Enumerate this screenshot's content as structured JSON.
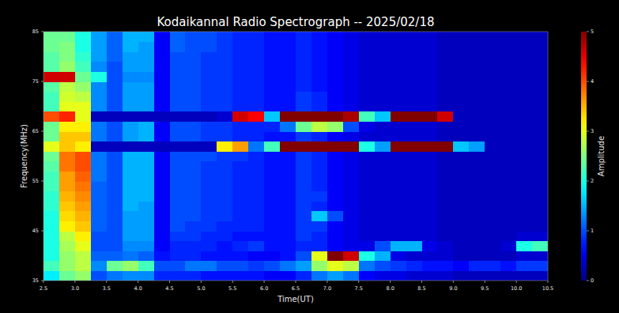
{
  "chart_data": {
    "type": "heatmap",
    "title": "Kodaikannal Radio Spectrograph -- 2025/02/18",
    "x_label": "Time(UT)",
    "y_label": "Frequency(MHz)",
    "xlim": [
      2.5,
      10.5
    ],
    "ylim": [
      35,
      85
    ],
    "xticks": [
      2.5,
      {
        "value": 3,
        "label": "3.0"
      },
      3.5,
      {
        "value": 4,
        "label": "4.0"
      },
      4.5,
      {
        "value": 5,
        "label": "5.0"
      },
      5.5,
      {
        "value": 6,
        "label": "6.0"
      },
      6.5,
      {
        "value": 7,
        "label": "7.0"
      },
      7.5,
      {
        "value": 8,
        "label": "8.0"
      },
      8.5,
      {
        "value": 9,
        "label": "9.0"
      },
      9.5,
      {
        "value": 10,
        "label": "10.0"
      },
      10.5
    ],
    "yticks": [
      35,
      45,
      55,
      65,
      75,
      85
    ],
    "x_edges": [
      2.5,
      2.75,
      3,
      3.25,
      3.5,
      3.75,
      4,
      4.25,
      4.5,
      4.75,
      5,
      5.25,
      5.5,
      5.75,
      6,
      6.25,
      6.5,
      6.75,
      7,
      7.25,
      7.5,
      7.75,
      8,
      8.25,
      8.5,
      8.75,
      9,
      9.25,
      9.5,
      9.75,
      10,
      10.25,
      10.5
    ],
    "y_edges": [
      35,
      37,
      39,
      41,
      43,
      45,
      47,
      49,
      51,
      53,
      55,
      57,
      59,
      61,
      63,
      65,
      67,
      69,
      71,
      73,
      75,
      77,
      79,
      81,
      83,
      85
    ],
    "cells": [
      [
        1.8,
        2.4,
        2.6,
        1.0,
        1.2,
        1.3,
        1.3,
        0.8,
        0.8,
        0.8,
        0.7,
        0.7,
        0.7,
        0.7,
        0.6,
        0.6,
        0.8,
        1.2,
        1.4,
        1.2,
        0.6,
        0.5,
        0.5,
        0.4,
        0.4,
        0.4,
        0.3,
        0.3,
        0.3,
        0.3,
        0.3,
        0.3
      ],
      [
        2.2,
        2.6,
        2.8,
        1.3,
        2.4,
        2.6,
        2.2,
        1.0,
        1.0,
        1.2,
        1.2,
        1.0,
        1.0,
        0.9,
        1.0,
        1.2,
        1.4,
        2.6,
        3.0,
        2.8,
        1.2,
        1.0,
        0.9,
        0.8,
        0.7,
        0.7,
        0.6,
        0.8,
        0.8,
        0.7,
        0.9,
        0.9
      ],
      [
        2.0,
        2.6,
        2.8,
        1.1,
        1.1,
        1.2,
        1.1,
        0.7,
        0.8,
        0.8,
        0.7,
        0.7,
        0.7,
        0.6,
        0.6,
        0.7,
        1.0,
        3.0,
        5,
        4.6,
        2.0,
        1.5,
        0.5,
        0.4,
        0.4,
        0.4,
        0.3,
        0.3,
        0.3,
        0.3,
        0.4,
        0.4
      ],
      [
        2.0,
        2.7,
        3.0,
        1.0,
        1.0,
        1.3,
        1.3,
        0.6,
        0.8,
        0.8,
        0.8,
        0.7,
        0.8,
        0.9,
        0.7,
        0.7,
        0.8,
        0.8,
        0.6,
        0.5,
        0.5,
        1.0,
        1.5,
        1.5,
        0.5,
        0.4,
        0.3,
        0.3,
        0.3,
        0.4,
        2.0,
        2.2
      ],
      [
        2.0,
        2.8,
        3.2,
        1.0,
        1.0,
        1.4,
        1.4,
        0.6,
        0.9,
        0.9,
        0.8,
        0.8,
        0.7,
        0.7,
        0.7,
        0.7,
        0.9,
        0.8,
        0.6,
        0.5,
        0.4,
        0.4,
        0.4,
        0.4,
        0.4,
        0.3,
        0.3,
        0.3,
        0.3,
        0.3,
        0.4,
        0.4
      ],
      [
        2.0,
        3.2,
        3.4,
        1.1,
        1.0,
        1.4,
        1.4,
        0.6,
        1.0,
        0.9,
        0.9,
        0.8,
        0.8,
        0.8,
        0.7,
        0.7,
        0.9,
        0.9,
        0.6,
        0.5,
        0.4,
        0.4,
        0.4,
        0.4,
        0.4,
        0.3,
        0.3,
        0.3,
        0.3,
        0.3,
        0.3,
        0.3
      ],
      [
        2.0,
        3.3,
        3.5,
        1.1,
        1.0,
        1.4,
        1.4,
        0.6,
        1.0,
        1.0,
        0.9,
        0.9,
        0.8,
        0.8,
        0.7,
        0.7,
        0.9,
        1.6,
        1.0,
        0.5,
        0.4,
        0.4,
        0.4,
        0.4,
        0.4,
        0.3,
        0.3,
        0.3,
        0.3,
        0.3,
        0.3,
        0.3
      ],
      [
        2.1,
        3.4,
        3.6,
        1.1,
        1.0,
        1.5,
        1.4,
        0.6,
        1.0,
        1.0,
        0.9,
        0.9,
        0.8,
        0.8,
        0.7,
        0.7,
        0.9,
        0.8,
        0.6,
        0.5,
        0.4,
        0.4,
        0.4,
        0.4,
        0.4,
        0.3,
        0.3,
        0.3,
        0.3,
        0.3,
        0.3,
        0.3
      ],
      [
        2.1,
        3.5,
        3.7,
        1.1,
        1.0,
        1.5,
        1.5,
        0.6,
        1.0,
        1.0,
        0.9,
        0.9,
        0.8,
        0.8,
        0.7,
        0.7,
        0.9,
        0.9,
        0.6,
        0.5,
        0.4,
        0.4,
        0.4,
        0.4,
        0.4,
        0.3,
        0.3,
        0.3,
        0.3,
        0.3,
        0.3,
        0.3
      ],
      [
        2.2,
        3.6,
        3.8,
        1.1,
        1.0,
        1.5,
        1.5,
        0.6,
        1.0,
        1.0,
        0.9,
        0.9,
        0.8,
        0.8,
        0.7,
        0.7,
        0.9,
        0.8,
        0.6,
        0.5,
        0.4,
        0.4,
        0.4,
        0.4,
        0.4,
        0.3,
        0.3,
        0.3,
        0.3,
        0.3,
        0.3,
        0.3
      ],
      [
        2.2,
        3.6,
        3.9,
        1.2,
        1.0,
        1.5,
        1.5,
        0.6,
        1.0,
        1.0,
        0.9,
        0.9,
        0.8,
        0.8,
        0.7,
        0.7,
        0.9,
        0.8,
        0.6,
        0.5,
        0.4,
        0.4,
        0.4,
        0.4,
        0.4,
        0.3,
        0.3,
        0.3,
        0.3,
        0.3,
        0.3,
        0.3
      ],
      [
        2.3,
        3.8,
        4.0,
        1.2,
        1.0,
        1.5,
        1.5,
        0.6,
        1.0,
        1.0,
        0.9,
        0.9,
        0.8,
        0.8,
        0.7,
        0.7,
        0.9,
        0.8,
        0.6,
        0.5,
        0.4,
        0.4,
        0.4,
        0.4,
        0.4,
        0.3,
        0.3,
        0.3,
        0.3,
        0.3,
        0.3,
        0.3
      ],
      [
        2.4,
        3.8,
        4.0,
        1.2,
        1.0,
        1.5,
        1.5,
        0.6,
        1.0,
        1.0,
        1.0,
        0.9,
        0.9,
        0.8,
        0.7,
        0.7,
        0.9,
        0.8,
        0.6,
        0.5,
        0.4,
        0.4,
        0.4,
        0.4,
        0.4,
        0.3,
        0.3,
        0.3,
        0.3,
        0.3,
        0.3,
        0.3
      ],
      [
        3.0,
        3.4,
        3.2,
        0.3,
        0.3,
        0.3,
        0.3,
        0.3,
        0.3,
        0.3,
        0.3,
        3.2,
        3.6,
        1.2,
        2.2,
        5,
        5,
        5,
        5,
        5,
        2.0,
        1.4,
        5,
        5,
        5,
        5,
        1.6,
        1.4,
        0.3,
        0.3,
        0.3,
        0.3
      ],
      [
        2.4,
        3.4,
        3.4,
        1.2,
        1.0,
        1.4,
        1.5,
        0.6,
        1.0,
        1.0,
        0.9,
        0.9,
        0.8,
        0.8,
        0.7,
        0.7,
        0.9,
        0.8,
        0.6,
        0.5,
        0.4,
        0.4,
        0.4,
        0.4,
        0.4,
        0.3,
        0.3,
        0.3,
        0.3,
        0.3,
        0.3,
        0.3
      ],
      [
        2.4,
        3.2,
        3.2,
        1.2,
        1.0,
        1.4,
        1.5,
        0.6,
        1.0,
        1.0,
        0.9,
        0.9,
        0.8,
        0.8,
        0.8,
        1.2,
        2.4,
        2.8,
        2.6,
        1.0,
        0.5,
        0.4,
        0.4,
        0.4,
        0.4,
        0.3,
        0.3,
        0.3,
        0.3,
        0.3,
        0.3,
        0.3
      ],
      [
        4.0,
        4.2,
        3.0,
        0.3,
        0.3,
        0.3,
        0.3,
        0.3,
        0.3,
        0.3,
        0.3,
        0.4,
        4.6,
        4.4,
        1.6,
        5,
        5,
        5,
        5,
        4.8,
        2.2,
        1.6,
        5,
        5,
        5,
        4.6,
        0.3,
        0.3,
        0.3,
        0.3,
        0.3,
        0.3
      ],
      [
        2.2,
        3.0,
        3.0,
        1.3,
        1.0,
        1.4,
        1.4,
        0.6,
        1.0,
        1.0,
        0.9,
        0.9,
        0.8,
        0.8,
        0.7,
        0.7,
        0.9,
        0.8,
        0.6,
        0.5,
        0.4,
        0.4,
        0.4,
        0.4,
        0.4,
        0.3,
        0.3,
        0.3,
        0.3,
        0.3,
        0.3,
        0.3
      ],
      [
        2.2,
        2.9,
        2.8,
        1.3,
        1.0,
        1.4,
        1.4,
        0.6,
        1.0,
        1.0,
        0.9,
        0.9,
        0.8,
        0.8,
        0.7,
        0.7,
        0.9,
        0.8,
        0.6,
        0.5,
        0.4,
        0.4,
        0.4,
        0.4,
        0.4,
        0.3,
        0.3,
        0.3,
        0.3,
        0.3,
        0.3,
        0.3
      ],
      [
        2.3,
        2.8,
        2.6,
        1.3,
        1.0,
        1.4,
        1.4,
        0.6,
        1.0,
        1.0,
        0.9,
        0.9,
        0.8,
        0.8,
        0.7,
        0.7,
        0.8,
        0.7,
        0.6,
        0.5,
        0.4,
        0.4,
        0.4,
        0.4,
        0.4,
        0.3,
        0.3,
        0.3,
        0.3,
        0.3,
        0.3,
        0.3
      ],
      [
        4.6,
        4.6,
        2.4,
        2.0,
        1.0,
        1.3,
        1.3,
        0.6,
        1.0,
        1.0,
        0.9,
        0.9,
        0.8,
        0.8,
        0.7,
        0.7,
        0.8,
        0.7,
        0.6,
        0.5,
        0.4,
        0.4,
        0.4,
        0.4,
        0.4,
        0.3,
        0.3,
        0.3,
        0.3,
        0.3,
        0.3,
        0.3
      ],
      [
        2.3,
        2.6,
        2.2,
        1.3,
        1.0,
        1.4,
        1.4,
        0.6,
        1.0,
        1.0,
        0.9,
        0.9,
        0.8,
        0.8,
        0.7,
        0.7,
        0.8,
        0.7,
        0.6,
        0.5,
        0.4,
        0.4,
        0.4,
        0.4,
        0.4,
        0.3,
        0.3,
        0.3,
        0.3,
        0.3,
        0.3,
        0.3
      ],
      [
        2.3,
        2.5,
        2.1,
        1.4,
        1.1,
        1.4,
        1.4,
        0.6,
        1.0,
        1.0,
        0.9,
        0.9,
        0.8,
        0.8,
        0.7,
        0.7,
        0.8,
        0.7,
        0.6,
        0.5,
        0.4,
        0.4,
        0.4,
        0.4,
        0.4,
        0.3,
        0.3,
        0.3,
        0.3,
        0.3,
        0.3,
        0.3
      ],
      [
        2.4,
        2.5,
        2.0,
        1.4,
        1.1,
        1.5,
        1.4,
        0.6,
        1.1,
        1.0,
        1.0,
        0.9,
        0.8,
        0.8,
        0.7,
        0.7,
        0.8,
        0.7,
        0.6,
        0.5,
        0.4,
        0.4,
        0.4,
        0.4,
        0.4,
        0.3,
        0.3,
        0.3,
        0.3,
        0.3,
        0.3,
        0.3
      ],
      [
        2.4,
        2.4,
        2.0,
        1.4,
        1.1,
        1.5,
        1.5,
        0.6,
        1.1,
        1.0,
        1.0,
        0.9,
        0.8,
        0.8,
        0.7,
        0.7,
        0.8,
        0.7,
        0.6,
        0.5,
        0.4,
        0.4,
        0.4,
        0.4,
        0.4,
        0.3,
        0.3,
        0.3,
        0.3,
        0.3,
        0.3,
        0.3
      ]
    ],
    "colorbar": {
      "label": "Amplitude",
      "lim": [
        0,
        5
      ],
      "ticks": [
        0,
        1,
        2,
        3,
        4,
        5
      ]
    }
  }
}
